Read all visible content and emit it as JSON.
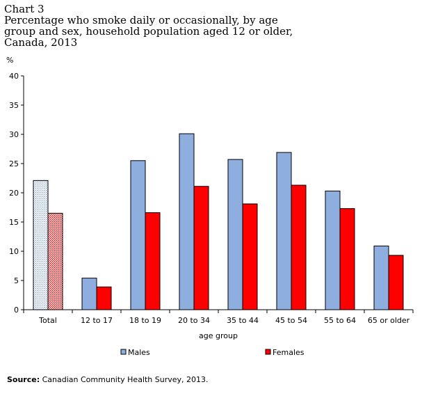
{
  "title_lines": [
    "Chart 3",
    "Percentage who smoke daily or occasionally, by age",
    "group and sex, household population aged 12 or older,",
    "Canada, 2013"
  ],
  "source_label": "Source:",
  "source_text": " Canadian Community Health Survey, 2013.",
  "colors": {
    "males": "#8eaee0",
    "females": "#ff0000"
  },
  "chart_data": {
    "type": "bar",
    "title": "",
    "ylabel": "%",
    "xlabel": "age group",
    "ylim": [
      0,
      40
    ],
    "yticks": [
      0,
      5,
      10,
      15,
      20,
      25,
      30,
      35,
      40
    ],
    "grid": false,
    "legend_position": "bottom",
    "categories": [
      "Total",
      "12 to 17",
      "18 to 19",
      "20 to 34",
      "35 to 44",
      "45 to 54",
      "55 to 64",
      "65 or older"
    ],
    "series": [
      {
        "name": "Males",
        "values": [
          22.1,
          5.4,
          25.5,
          30.1,
          25.7,
          26.9,
          20.3,
          10.9
        ]
      },
      {
        "name": "Females",
        "values": [
          16.5,
          3.9,
          16.6,
          21.1,
          18.1,
          21.3,
          17.3,
          9.3
        ]
      }
    ],
    "patterned_categories": [
      "Total"
    ]
  }
}
